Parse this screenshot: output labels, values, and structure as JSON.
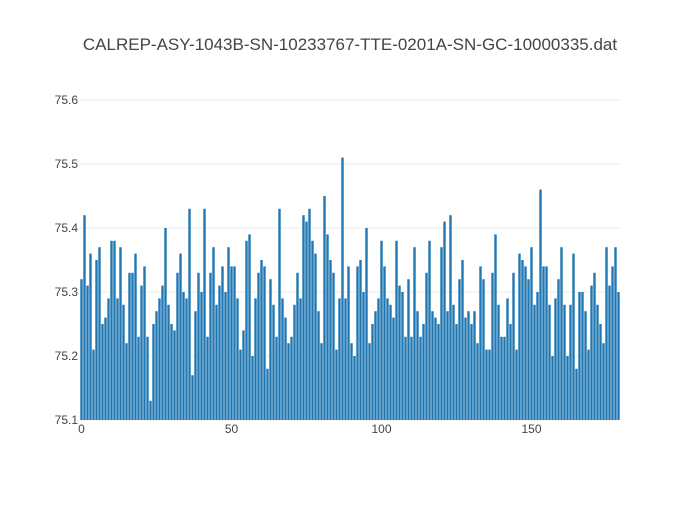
{
  "chart_data": {
    "type": "bar",
    "title": "CALREP-ASY-1043B-SN-10233767-TTE-0201A-SN-GC-10000335.dat",
    "xlabel": "",
    "ylabel": "",
    "xlim": [
      -0.5,
      179.5
    ],
    "ylim": [
      75.1,
      75.6
    ],
    "x_ticks": [
      0,
      50,
      100,
      150
    ],
    "y_ticks": [
      75.1,
      75.2,
      75.3,
      75.4,
      75.5,
      75.6
    ],
    "x_tick_labels": [
      "0",
      "50",
      "100",
      "150"
    ],
    "y_tick_labels": [
      "75.1",
      "75.2",
      "75.3",
      "75.4",
      "75.5",
      "75.6"
    ],
    "grid": true,
    "bar_color": "#1f77b4",
    "x_start": 0,
    "values": [
      75.32,
      75.42,
      75.31,
      75.36,
      75.21,
      75.35,
      75.37,
      75.25,
      75.26,
      75.29,
      75.38,
      75.38,
      75.29,
      75.37,
      75.28,
      75.22,
      75.33,
      75.33,
      75.36,
      75.23,
      75.31,
      75.34,
      75.23,
      75.13,
      75.25,
      75.27,
      75.29,
      75.31,
      75.4,
      75.28,
      75.25,
      75.24,
      75.33,
      75.36,
      75.3,
      75.29,
      75.43,
      75.17,
      75.27,
      75.33,
      75.3,
      75.43,
      75.23,
      75.33,
      75.37,
      75.28,
      75.31,
      75.34,
      75.3,
      75.37,
      75.34,
      75.34,
      75.29,
      75.21,
      75.24,
      75.38,
      75.39,
      75.2,
      75.29,
      75.33,
      75.35,
      75.34,
      75.18,
      75.32,
      75.28,
      75.23,
      75.43,
      75.29,
      75.26,
      75.22,
      75.23,
      75.28,
      75.33,
      75.29,
      75.42,
      75.41,
      75.43,
      75.38,
      75.36,
      75.27,
      75.22,
      75.45,
      75.39,
      75.35,
      75.33,
      75.21,
      75.29,
      75.51,
      75.29,
      75.34,
      75.22,
      75.2,
      75.34,
      75.35,
      75.3,
      75.4,
      75.22,
      75.25,
      75.27,
      75.29,
      75.38,
      75.34,
      75.29,
      75.28,
      75.26,
      75.38,
      75.31,
      75.3,
      75.23,
      75.32,
      75.23,
      75.37,
      75.27,
      75.23,
      75.25,
      75.33,
      75.38,
      75.27,
      75.26,
      75.25,
      75.37,
      75.41,
      75.27,
      75.42,
      75.28,
      75.25,
      75.32,
      75.35,
      75.26,
      75.27,
      75.25,
      75.27,
      75.22,
      75.34,
      75.32,
      75.21,
      75.21,
      75.33,
      75.39,
      75.28,
      75.23,
      75.23,
      75.29,
      75.25,
      75.33,
      75.21,
      75.36,
      75.35,
      75.34,
      75.32,
      75.37,
      75.28,
      75.3,
      75.46,
      75.34,
      75.34,
      75.28,
      75.2,
      75.29,
      75.32,
      75.37,
      75.28,
      75.2,
      75.28,
      75.36,
      75.18,
      75.3,
      75.3,
      75.27,
      75.21,
      75.31,
      75.33,
      75.28,
      75.25,
      75.22,
      75.37,
      75.31,
      75.34,
      75.37,
      75.3
    ]
  }
}
